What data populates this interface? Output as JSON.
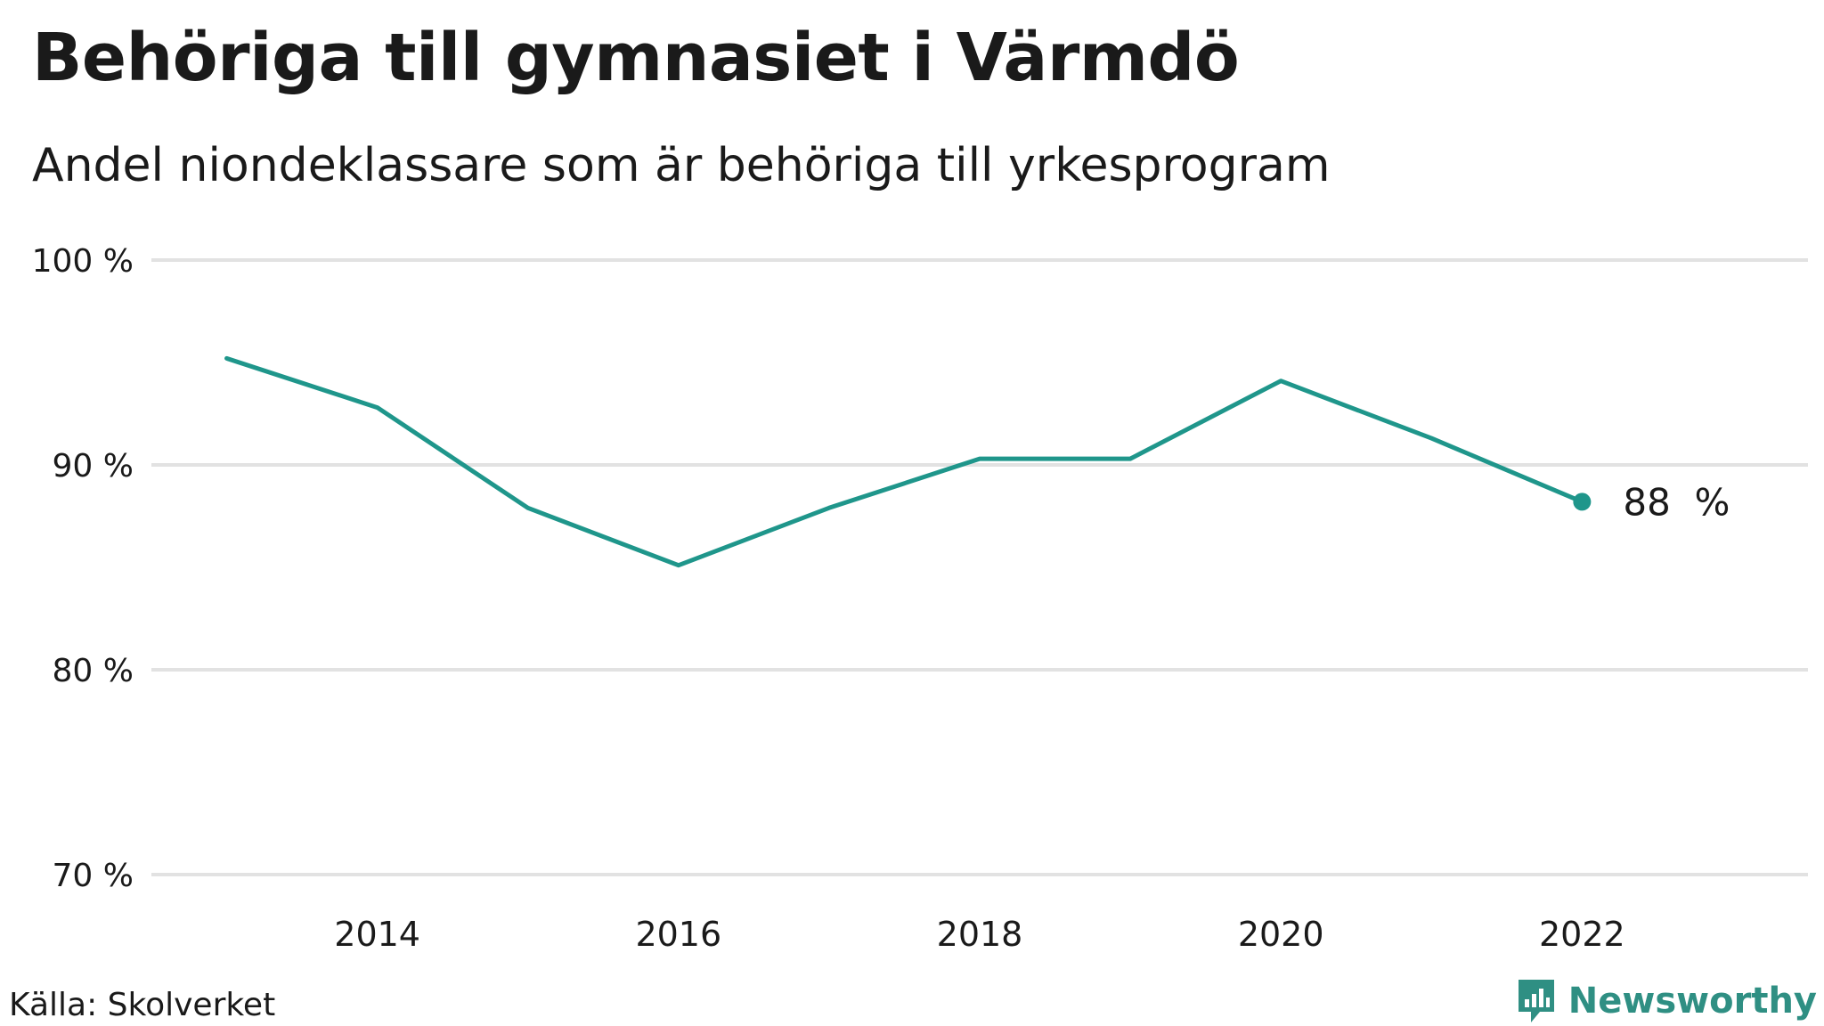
{
  "header": {
    "title": "Behöriga till gymnasiet i Värmdö",
    "subtitle": "Andel niondeklassare som är behöriga till yrkesprogram"
  },
  "footer": {
    "source": "Källa: Skolverket",
    "brand": "Newsworthy",
    "brand_icon": "bar-chart-speech-bubble-icon"
  },
  "colors": {
    "line": "#1f968b",
    "grid": "#e2e2e2",
    "text": "#1a1a1a",
    "brand": "#2f8f83"
  },
  "chart_data": {
    "type": "line",
    "x": [
      2013,
      2014,
      2015,
      2016,
      2017,
      2018,
      2019,
      2020,
      2021,
      2022
    ],
    "series": [
      {
        "values": [
          95.2,
          92.8,
          87.9,
          85.1,
          87.9,
          90.3,
          90.3,
          94.1,
          91.3,
          88.2
        ]
      }
    ],
    "ylim": [
      70,
      100
    ],
    "xlim": [
      2012.5,
      2023.5
    ],
    "y_ticks": [
      70,
      80,
      90,
      100
    ],
    "y_tick_labels": [
      "70 %",
      "80 %",
      "90 %",
      "100 %"
    ],
    "x_ticks": [
      2014,
      2016,
      2018,
      2020,
      2022
    ],
    "x_tick_labels": [
      "2014",
      "2016",
      "2018",
      "2020",
      "2022"
    ],
    "end_label": "88  %",
    "grid": true,
    "legend": "none"
  }
}
